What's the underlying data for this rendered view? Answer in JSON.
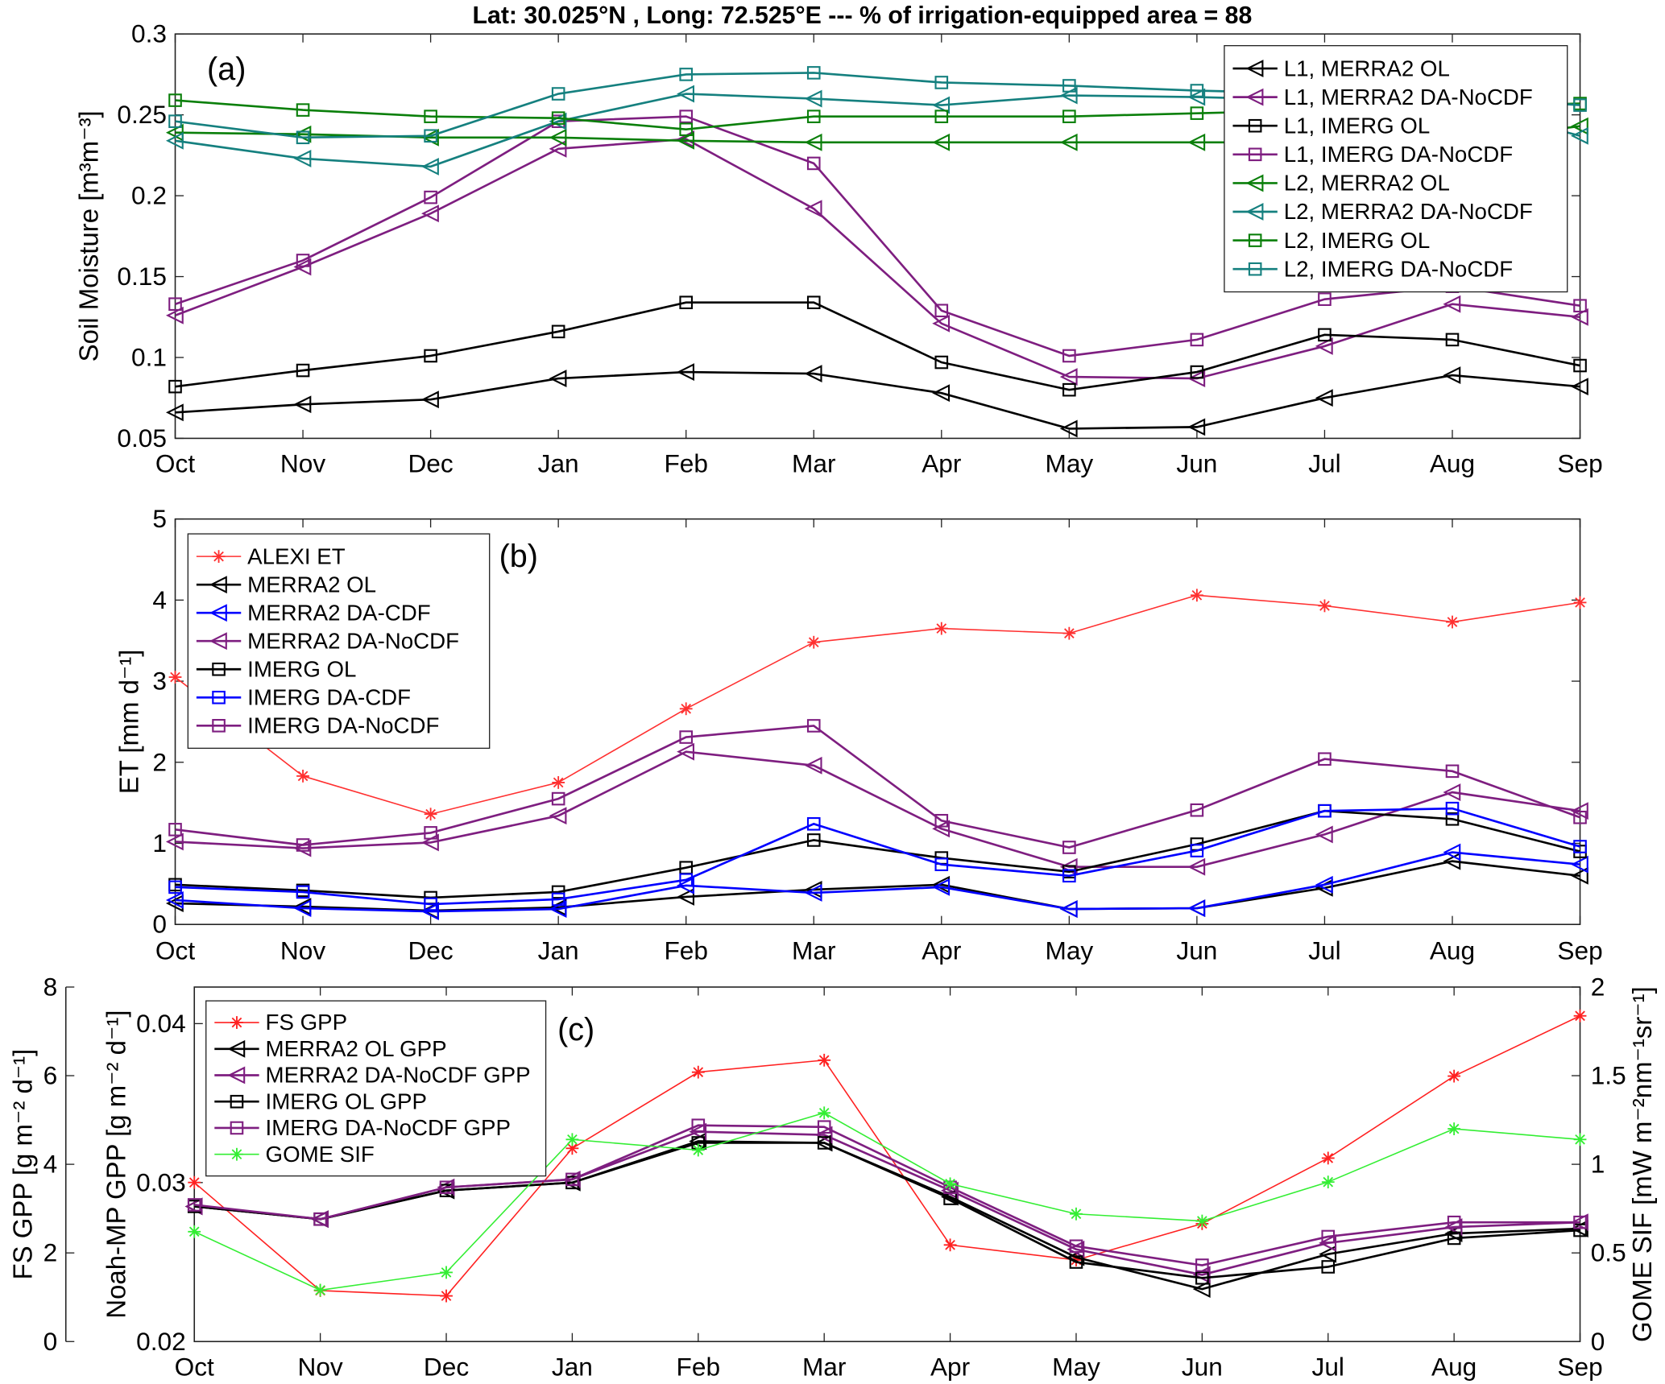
{
  "title": "Lat: 30.025°N , Long: 72.525°E  ---  % of irrigation-equipped area = 88",
  "chart_data": [
    {
      "type": "line",
      "panel_label": "(a)",
      "ylabel": "Soil Moisture [m³m⁻³]",
      "ylim": [
        0.05,
        0.3
      ],
      "yticks": [
        0.05,
        0.1,
        0.15,
        0.2,
        0.25,
        0.3
      ],
      "ytick_labels": [
        "0.05",
        "0.1",
        "0.15",
        "0.2",
        "0.25",
        "0.3"
      ],
      "categories": [
        "Oct",
        "Nov",
        "Dec",
        "Jan",
        "Feb",
        "Mar",
        "Apr",
        "May",
        "Jun",
        "Jul",
        "Aug",
        "Sep"
      ],
      "legend_position": "top-right",
      "series": [
        {
          "name": "L1, MERRA2 OL",
          "color": "#000000",
          "marker": "triangle-left",
          "values": [
            0.066,
            0.071,
            0.074,
            0.087,
            0.091,
            0.09,
            0.078,
            0.056,
            0.057,
            0.075,
            0.089,
            0.082
          ]
        },
        {
          "name": "L1, MERRA2 DA-NoCDF",
          "color": "#7e1e80",
          "marker": "triangle-left",
          "values": [
            0.126,
            0.156,
            0.189,
            0.229,
            0.235,
            0.192,
            0.121,
            0.088,
            0.087,
            0.107,
            0.133,
            0.125
          ]
        },
        {
          "name": "L1, IMERG OL",
          "color": "#000000",
          "marker": "square",
          "values": [
            0.082,
            0.092,
            0.101,
            0.116,
            0.134,
            0.134,
            0.097,
            0.08,
            0.091,
            0.114,
            0.111,
            0.095
          ]
        },
        {
          "name": "L1, IMERG DA-NoCDF",
          "color": "#7e1e80",
          "marker": "square",
          "values": [
            0.133,
            0.16,
            0.199,
            0.246,
            0.249,
            0.22,
            0.129,
            0.101,
            0.111,
            0.136,
            0.144,
            0.132
          ]
        },
        {
          "name": "L2, MERRA2 OL",
          "color": "#0a7f0a",
          "marker": "triangle-left",
          "values": [
            0.239,
            0.238,
            0.236,
            0.236,
            0.234,
            0.233,
            0.233,
            0.233,
            0.233,
            0.233,
            0.233,
            0.243
          ]
        },
        {
          "name": "L2, MERRA2 DA-NoCDF",
          "color": "#15807f",
          "marker": "triangle-left",
          "values": [
            0.234,
            0.223,
            0.218,
            0.246,
            0.263,
            0.26,
            0.256,
            0.262,
            0.261,
            0.259,
            0.258,
            0.237
          ]
        },
        {
          "name": "L2, IMERG OL",
          "color": "#0a7f0a",
          "marker": "square",
          "values": [
            0.259,
            0.253,
            0.249,
            0.248,
            0.241,
            0.249,
            0.249,
            0.249,
            0.251,
            0.253,
            0.255,
            0.257
          ]
        },
        {
          "name": "L2, IMERG DA-NoCDF",
          "color": "#15807f",
          "marker": "square",
          "values": [
            0.246,
            0.236,
            0.237,
            0.263,
            0.275,
            0.276,
            0.27,
            0.268,
            0.265,
            0.263,
            0.261,
            0.256
          ]
        }
      ]
    },
    {
      "type": "line",
      "panel_label": "(b)",
      "ylabel": "ET [mm d⁻¹]",
      "ylim": [
        0,
        5
      ],
      "yticks": [
        0,
        1,
        2,
        3,
        4,
        5
      ],
      "ytick_labels": [
        "0",
        "1",
        "2",
        "3",
        "4",
        "5"
      ],
      "categories": [
        "Oct",
        "Nov",
        "Dec",
        "Jan",
        "Feb",
        "Mar",
        "Apr",
        "May",
        "Jun",
        "Jul",
        "Aug",
        "Sep"
      ],
      "legend_position": "top-left",
      "series": [
        {
          "name": "ALEXI ET",
          "color": "#ff3030",
          "marker": "asterisk",
          "thin": true,
          "values": [
            3.05,
            1.83,
            1.36,
            1.75,
            2.66,
            3.48,
            3.65,
            3.59,
            4.06,
            3.93,
            3.73,
            3.97
          ]
        },
        {
          "name": "MERRA2 OL",
          "color": "#000000",
          "marker": "triangle-left",
          "values": [
            0.26,
            0.22,
            0.17,
            0.21,
            0.34,
            0.43,
            0.49,
            0.19,
            0.2,
            0.45,
            0.78,
            0.6
          ]
        },
        {
          "name": "MERRA2 DA-CDF",
          "color": "#0000ff",
          "marker": "triangle-left",
          "values": [
            0.3,
            0.2,
            0.16,
            0.19,
            0.48,
            0.39,
            0.46,
            0.19,
            0.2,
            0.49,
            0.89,
            0.74
          ]
        },
        {
          "name": "MERRA2 DA-NoCDF",
          "color": "#7e1e80",
          "marker": "triangle-left",
          "values": [
            1.02,
            0.94,
            1.01,
            1.34,
            2.13,
            1.96,
            1.18,
            0.71,
            0.71,
            1.11,
            1.63,
            1.4
          ]
        },
        {
          "name": "IMERG OL",
          "color": "#000000",
          "marker": "square",
          "values": [
            0.49,
            0.42,
            0.33,
            0.4,
            0.7,
            1.04,
            0.82,
            0.65,
            0.99,
            1.4,
            1.3,
            0.9
          ]
        },
        {
          "name": "IMERG DA-CDF",
          "color": "#0000ff",
          "marker": "square",
          "values": [
            0.46,
            0.4,
            0.25,
            0.31,
            0.55,
            1.24,
            0.74,
            0.6,
            0.91,
            1.4,
            1.43,
            0.96
          ]
        },
        {
          "name": "IMERG DA-NoCDF",
          "color": "#7e1e80",
          "marker": "square",
          "values": [
            1.17,
            0.98,
            1.13,
            1.55,
            2.31,
            2.45,
            1.28,
            0.95,
            1.41,
            2.04,
            1.89,
            1.32
          ]
        }
      ]
    },
    {
      "type": "line",
      "panel_label": "(c)",
      "ylabel": "Noah-MP GPP [g m⁻² d⁻¹]",
      "ylim": [
        0.02,
        0.0423
      ],
      "yticks": [
        0.02,
        0.03,
        0.04
      ],
      "ytick_labels": [
        "0.02",
        "0.03",
        "0.04"
      ],
      "ylabel_outer": "FS GPP [g m⁻² d⁻¹]",
      "ylim_outer": [
        0,
        8
      ],
      "yticks_outer": [
        0,
        2,
        4,
        6,
        8
      ],
      "ytick_labels_outer": [
        "0",
        "2",
        "4",
        "6",
        "8"
      ],
      "ylabel_right": "GOME SIF [mW m⁻²nm⁻¹sr⁻¹]",
      "ylim_right": [
        0,
        2
      ],
      "yticks_right": [
        0,
        0.5,
        1,
        1.5,
        2
      ],
      "ytick_labels_right": [
        "0",
        "0.5",
        "1",
        "1.5",
        "2"
      ],
      "categories": [
        "Oct",
        "Nov",
        "Dec",
        "Jan",
        "Feb",
        "Mar",
        "Apr",
        "May",
        "Jun",
        "Jul",
        "Aug",
        "Sep"
      ],
      "legend_position": "top-left",
      "series": [
        {
          "name": "FS GPP",
          "color": "#ff2020",
          "marker": "asterisk",
          "thin": true,
          "axis": "outer",
          "values": [
            3.59,
            1.15,
            1.03,
            4.36,
            6.08,
            6.35,
            2.18,
            1.84,
            2.66,
            4.14,
            5.99,
            7.35
          ]
        },
        {
          "name": "MERRA2 OL GPP",
          "color": "#000000",
          "marker": "triangle-left",
          "axis": "left",
          "values": [
            0.0285,
            0.0277,
            0.0295,
            0.03,
            0.0326,
            0.0325,
            0.0291,
            0.0253,
            0.0233,
            0.0255,
            0.0268,
            0.0271
          ]
        },
        {
          "name": "MERRA2 DA-NoCDF GPP",
          "color": "#7e1e80",
          "marker": "triangle-left",
          "axis": "left",
          "values": [
            0.0285,
            0.0277,
            0.0297,
            0.0302,
            0.0332,
            0.033,
            0.0295,
            0.0258,
            0.0242,
            0.0262,
            0.0272,
            0.0275
          ]
        },
        {
          "name": "IMERG OL GPP",
          "color": "#000000",
          "marker": "square",
          "axis": "left",
          "values": [
            0.0285,
            0.0277,
            0.0295,
            0.03,
            0.0325,
            0.0325,
            0.029,
            0.025,
            0.024,
            0.0247,
            0.0265,
            0.027
          ]
        },
        {
          "name": "IMERG DA-NoCDF GPP",
          "color": "#7e1e80",
          "marker": "square",
          "axis": "left",
          "values": [
            0.0286,
            0.0277,
            0.0297,
            0.0302,
            0.0336,
            0.0335,
            0.0297,
            0.026,
            0.0248,
            0.0266,
            0.0275,
            0.0275
          ]
        },
        {
          "name": "GOME SIF",
          "color": "#33ee33",
          "marker": "asterisk",
          "thin": true,
          "axis": "right",
          "values": [
            0.62,
            0.29,
            0.39,
            1.14,
            1.08,
            1.29,
            0.89,
            0.72,
            0.68,
            0.9,
            1.2,
            1.14
          ]
        }
      ]
    }
  ]
}
